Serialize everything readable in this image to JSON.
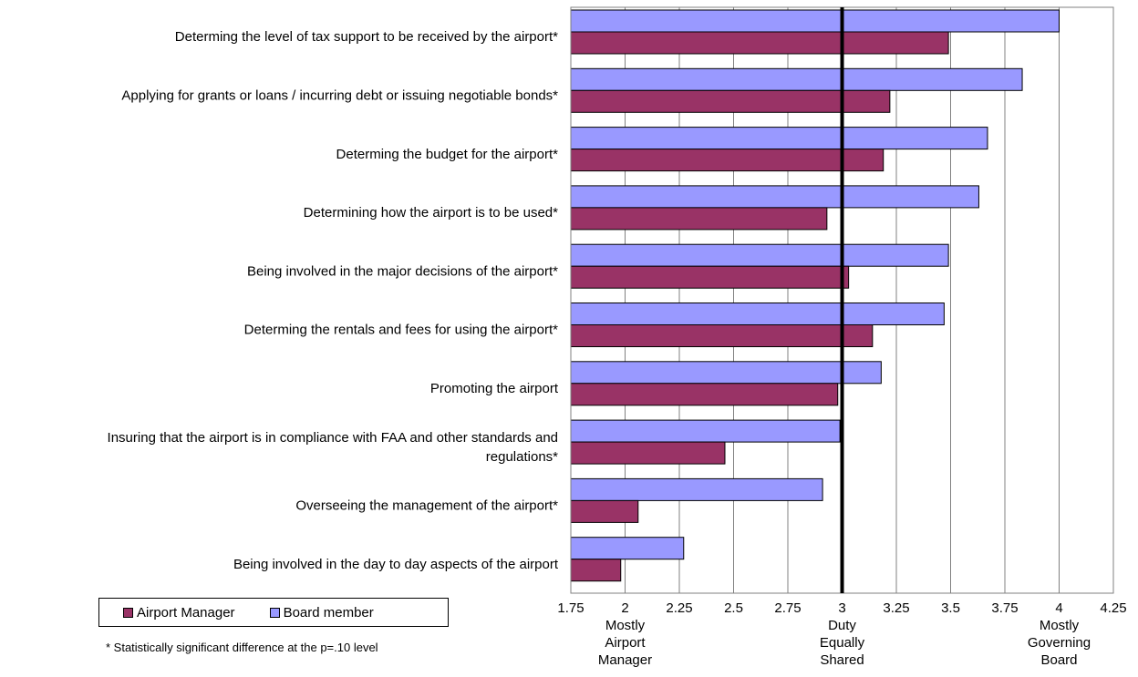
{
  "chart_data": {
    "type": "bar",
    "orientation": "horizontal",
    "categories": [
      "Determing the level of tax support to be received by the airport*",
      "Applying for grants or loans / incurring debt or issuing negotiable bonds*",
      "Determing the budget for the airport*",
      "Determining how the airport is to be used*",
      "Being involved in the major decisions of the airport*",
      "Determing the rentals and fees for using the airport*",
      "Promoting the airport",
      "Insuring that the airport is in compliance with FAA and other standards and regulations*",
      "Overseeing the management of the airport*",
      "Being involved in the day to day aspects of the airport"
    ],
    "series": [
      {
        "name": "Board member",
        "color": "#9999ff",
        "values": [
          4.0,
          3.83,
          3.67,
          3.63,
          3.49,
          3.47,
          3.18,
          2.99,
          2.91,
          2.27
        ]
      },
      {
        "name": "Airport Manager",
        "color": "#993366",
        "values": [
          3.49,
          3.22,
          3.19,
          2.93,
          3.03,
          3.14,
          2.98,
          2.46,
          2.06,
          1.98
        ]
      }
    ],
    "xlim": [
      1.75,
      4.25
    ],
    "xticks": [
      "1.75",
      "2",
      "2.25",
      "2.5",
      "2.75",
      "3",
      "3.25",
      "3.5",
      "3.75",
      "4",
      "4.25"
    ],
    "reference_line": 3,
    "grid": "vertical",
    "scale_anchors": [
      {
        "x": 2,
        "label": [
          "Mostly",
          "Airport",
          "Manager"
        ]
      },
      {
        "x": 3,
        "label": [
          "Duty",
          "Equally",
          "Shared"
        ]
      },
      {
        "x": 4,
        "label": [
          "Mostly",
          "Governing",
          "Board"
        ]
      }
    ],
    "legend": {
      "position": "bottom-left",
      "entries": [
        "Airport Manager",
        "Board member"
      ]
    },
    "footnote": "* Statistically significant difference at the p=.10 level"
  }
}
